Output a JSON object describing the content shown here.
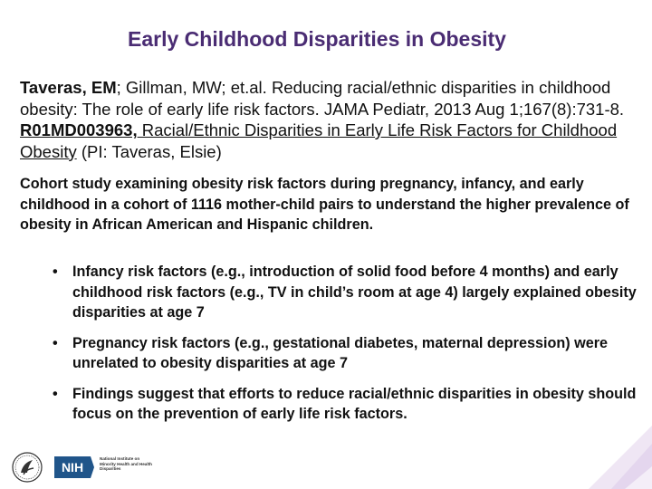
{
  "title": "Early Childhood Disparities in Obesity",
  "citation": {
    "authors_bold": "Taveras, EM",
    "authors_rest": "; Gillman, MW; et.al. Reducing racial/ethnic disparities in childhood obesity: The role of early life risk factors. JAMA Pediatr, 2013 Aug 1;167(8):731-8. ",
    "grant_number": "R01MD003963,",
    "grant_title": " Racial/Ethnic Disparities in Early Life Risk Factors for Childhood Obesity",
    "pi": " (PI: Taveras, Elsie)"
  },
  "summary": "Cohort study examining obesity risk factors during pregnancy, infancy, and early childhood in a cohort of 1116 mother-child pairs to understand the higher prevalence of obesity in African American and Hispanic children.",
  "bullet_glyph": "•",
  "bullets": [
    "Infancy risk factors (e.g., introduction of solid food before 4 months) and early childhood risk factors (e.g., TV in child’s room at age 4) largely explained obesity disparities at age 7",
    "Pregnancy risk factors (e.g., gestational diabetes, maternal depression) were unrelated to obesity disparities at age 7",
    "Findings suggest that efforts to reduce racial/ethnic disparities in obesity should focus on the prevention of early life risk factors."
  ],
  "footer": {
    "nih_label": "NIH",
    "institute_name": "National Institute on Minority Health and Health Disparities"
  },
  "colors": {
    "title": "#4a2c73",
    "nih_blue": "#20558a",
    "deco_purple": "#efe6f4"
  }
}
